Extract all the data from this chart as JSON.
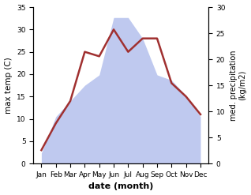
{
  "months": [
    "Jan",
    "Feb",
    "Mar",
    "Apr",
    "May",
    "Jun",
    "Jul",
    "Aug",
    "Sep",
    "Oct",
    "Nov",
    "Dec"
  ],
  "temperature": [
    3,
    9,
    14,
    25,
    24,
    30,
    25,
    28,
    28,
    18,
    15,
    11
  ],
  "precipitation": [
    2,
    9,
    12,
    15,
    17,
    28,
    28,
    24,
    17,
    16,
    13,
    9
  ],
  "temp_color": "#a03030",
  "precip_color_fill": "#b8c4ee",
  "temp_ylim": [
    0,
    35
  ],
  "precip_ylim": [
    0,
    30
  ],
  "temp_yticks": [
    0,
    5,
    10,
    15,
    20,
    25,
    30,
    35
  ],
  "precip_yticks": [
    0,
    5,
    10,
    15,
    20,
    25,
    30
  ],
  "xlabel": "date (month)",
  "ylabel_left": "max temp (C)",
  "ylabel_right": "med. precipitation\n(kg/m2)",
  "bg_color": "#ffffff"
}
